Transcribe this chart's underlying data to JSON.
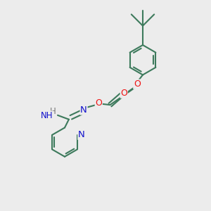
{
  "background_color": "#ececec",
  "bond_color": "#3d7a5c",
  "bond_width": 1.5,
  "atom_colors": {
    "O": "#ee1111",
    "N": "#1111cc",
    "H": "#777777"
  },
  "font_size_atom": 8.5,
  "fig_size": [
    3.0,
    3.0
  ],
  "dpi": 100
}
